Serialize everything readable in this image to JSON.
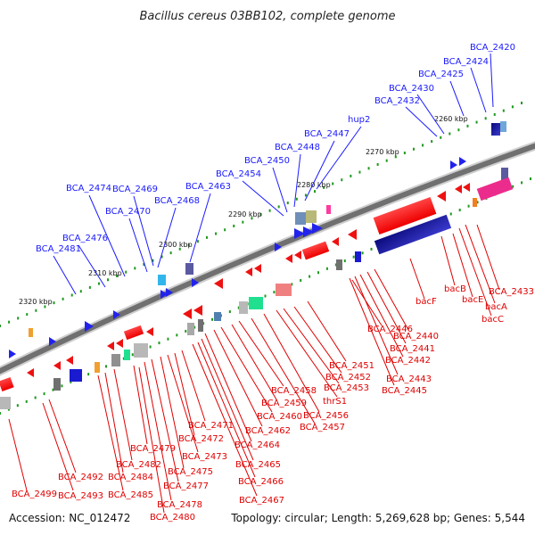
{
  "header": {
    "title": "Bacillus cereus 03BB102, complete genome"
  },
  "footer": {
    "accession": "Accession: NC_012472",
    "topology": "Topology: circular; Length: 5,269,628 bp; Genes: 5,544"
  },
  "colors": {
    "upper_label": "#1a1aff",
    "lower_label": "#e00000",
    "forward_gene": "#2222ee",
    "reverse_gene": "#ee1111",
    "tick": "#1e9a1e",
    "backbone": "#7a7a7a"
  },
  "scale": {
    "ticks": [
      {
        "label": "2260 kbp"
      },
      {
        "label": "2270 kbp"
      },
      {
        "label": "2280 kbp"
      },
      {
        "label": "2290 kbp"
      },
      {
        "label": "2300 kbp"
      },
      {
        "label": "2310 kbp"
      },
      {
        "label": "2320 kbp"
      }
    ]
  },
  "upper_labels": [
    "BCA_2420",
    "BCA_2424",
    "BCA_2425",
    "BCA_2430",
    "BCA_2432",
    "hup2",
    "BCA_2447",
    "BCA_2448",
    "BCA_2450",
    "BCA_2454",
    "BCA_2463",
    "BCA_2468",
    "BCA_2469",
    "BCA_2470",
    "BCA_2474",
    "BCA_2476",
    "BCA_2481"
  ],
  "lower_labels": [
    "BCA_2433",
    "bacA",
    "bacC",
    "bacE",
    "bacB",
    "bacF",
    "BCA_2440",
    "BCA_2441",
    "BCA_2442",
    "BCA_2443",
    "BCA_2445",
    "BCA_2446",
    "BCA_2451",
    "BCA_2452",
    "BCA_2453",
    "thrS1",
    "BCA_2456",
    "BCA_2457",
    "BCA_2458",
    "BCA_2459",
    "BCA_2460",
    "BCA_2462",
    "BCA_2464",
    "BCA_2465",
    "BCA_2466",
    "BCA_2467",
    "BCA_2471",
    "BCA_2472",
    "BCA_2473",
    "BCA_2475",
    "BCA_2477",
    "BCA_2478",
    "BCA_2479",
    "BCA_2480",
    "BCA_2482",
    "BCA_2484",
    "BCA_2485",
    "BCA_2492",
    "BCA_2493",
    "BCA_2499"
  ]
}
